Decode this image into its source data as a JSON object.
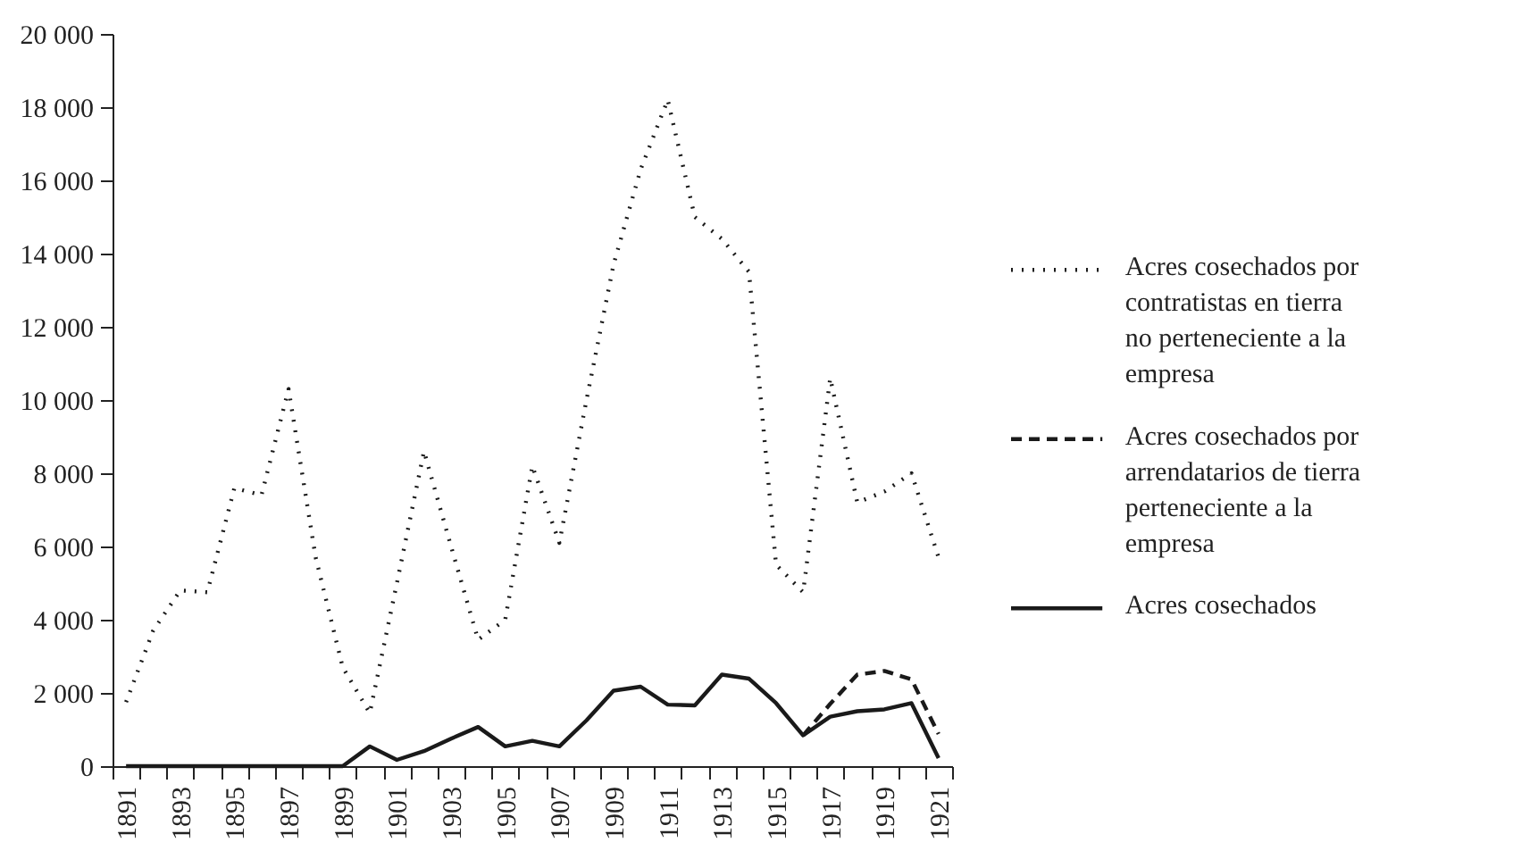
{
  "chart_data": {
    "type": "line",
    "categories": [
      "1891",
      null,
      "1893",
      null,
      "1895",
      null,
      "1897",
      null,
      "1899",
      null,
      "1901",
      null,
      "1903",
      null,
      "1905",
      null,
      "1907",
      null,
      "1909",
      null,
      "1911",
      null,
      "1913",
      null,
      "1915",
      null,
      "1917",
      null,
      "1919",
      null,
      "1921"
    ],
    "series": [
      {
        "name": "Acres cosechados por contratistas en tierra no perteneciente a la empresa",
        "color": "#1a1a1a",
        "line_style": "dotted",
        "values": [
          1750,
          3700,
          4800,
          4750,
          7600,
          7400,
          10300,
          5700,
          2700,
          1450,
          5000,
          8600,
          6000,
          3450,
          4000,
          8200,
          6100,
          10000,
          13700,
          16300,
          18200,
          15000,
          14400,
          13500,
          5500,
          4750,
          10600,
          7200,
          7500,
          8000,
          5700
        ]
      },
      {
        "name": "Acres cosechados por arrendatarios de tierra perteneciente a la empresa",
        "color": "#1a1a1a",
        "line_style": "dashed",
        "values": [
          null,
          null,
          null,
          null,
          null,
          null,
          null,
          null,
          null,
          null,
          null,
          null,
          null,
          null,
          null,
          null,
          null,
          null,
          null,
          null,
          null,
          null,
          null,
          null,
          null,
          840,
          1700,
          2500,
          2600,
          2370,
          880
        ]
      },
      {
        "name": "Acres cosechados",
        "color": "#1a1a1a",
        "line_style": "solid",
        "values": [
          0,
          0,
          0,
          0,
          0,
          0,
          0,
          0,
          0,
          540,
          170,
          410,
          750,
          1070,
          540,
          690,
          540,
          1250,
          2060,
          2170,
          1680,
          1660,
          2500,
          2390,
          1720,
          840,
          1350,
          1500,
          1550,
          1720,
          220
        ]
      }
    ],
    "ylim": [
      0,
      20000
    ],
    "yticks": [
      0,
      {
        "value": 2000,
        "label": "2 000"
      },
      {
        "value": 4000,
        "label": "4 000"
      },
      {
        "value": 6000,
        "label": "6 000"
      },
      {
        "value": 8000,
        "label": "8 000"
      },
      {
        "value": 10000,
        "label": "10 000"
      },
      {
        "value": 12000,
        "label": "12 000"
      },
      {
        "value": 14000,
        "label": "14 000"
      },
      {
        "value": 16000,
        "label": "16 000"
      },
      {
        "value": 18000,
        "label": "18 000"
      },
      {
        "value": 20000,
        "label": "20 000"
      }
    ],
    "legend": "right",
    "grid": false
  }
}
